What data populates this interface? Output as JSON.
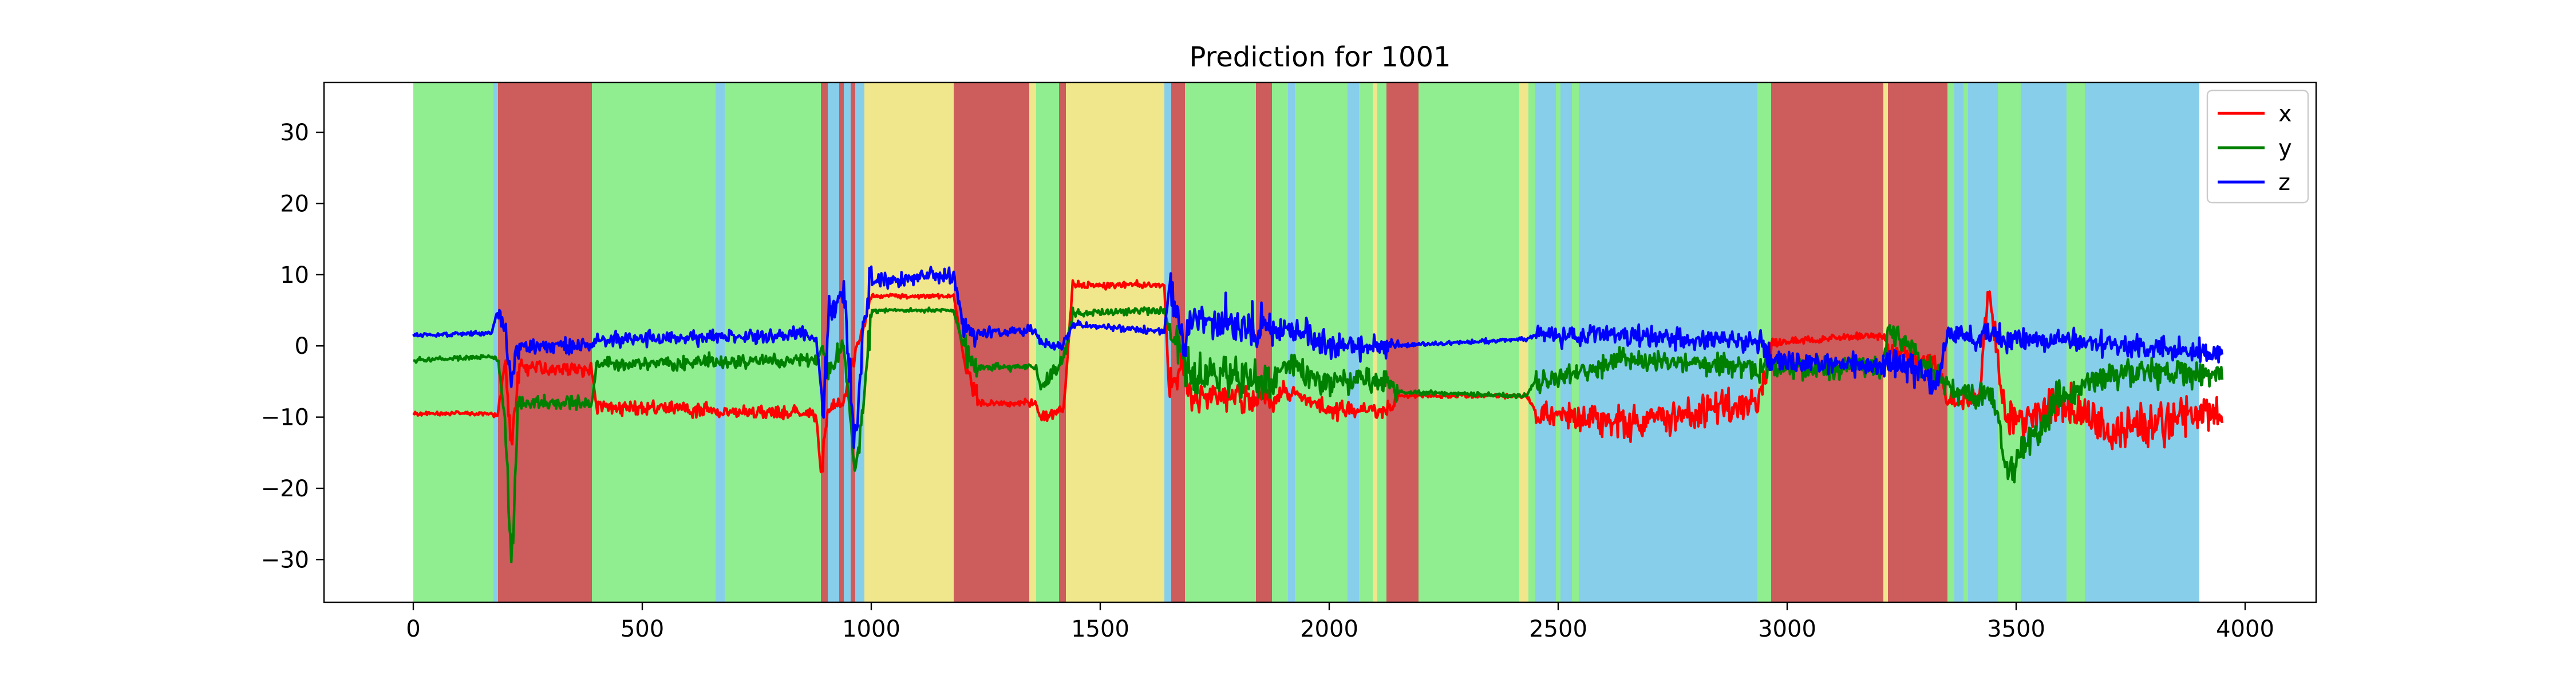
{
  "chart_data": {
    "type": "line",
    "title": "Prediction for 1001",
    "xlabel": "",
    "ylabel": "",
    "xlim": [
      -195,
      4155
    ],
    "ylim": [
      -36,
      37
    ],
    "xticks": [
      0,
      500,
      1000,
      1500,
      2000,
      2500,
      3000,
      3500,
      4000
    ],
    "yticks": [
      -30,
      -20,
      -10,
      0,
      10,
      20,
      30
    ],
    "grid": false,
    "legend_position": "top-right",
    "n_samples": 3950,
    "class_colors": {
      "green": "#90ee90",
      "red": "#cd5c5c",
      "blue": "#87ceeb",
      "yellow": "#f0e68c"
    },
    "background_segments": [
      {
        "start": 0,
        "end": 175,
        "class": "green"
      },
      {
        "start": 175,
        "end": 185,
        "class": "blue"
      },
      {
        "start": 185,
        "end": 390,
        "class": "red"
      },
      {
        "start": 390,
        "end": 660,
        "class": "green"
      },
      {
        "start": 660,
        "end": 680,
        "class": "blue"
      },
      {
        "start": 680,
        "end": 890,
        "class": "green"
      },
      {
        "start": 890,
        "end": 905,
        "class": "red"
      },
      {
        "start": 905,
        "end": 930,
        "class": "blue"
      },
      {
        "start": 930,
        "end": 940,
        "class": "red"
      },
      {
        "start": 940,
        "end": 955,
        "class": "blue"
      },
      {
        "start": 955,
        "end": 965,
        "class": "red"
      },
      {
        "start": 965,
        "end": 985,
        "class": "blue"
      },
      {
        "start": 985,
        "end": 1180,
        "class": "yellow"
      },
      {
        "start": 1180,
        "end": 1345,
        "class": "red"
      },
      {
        "start": 1345,
        "end": 1360,
        "class": "yellow"
      },
      {
        "start": 1360,
        "end": 1410,
        "class": "green"
      },
      {
        "start": 1410,
        "end": 1425,
        "class": "red"
      },
      {
        "start": 1425,
        "end": 1640,
        "class": "yellow"
      },
      {
        "start": 1640,
        "end": 1655,
        "class": "blue"
      },
      {
        "start": 1655,
        "end": 1685,
        "class": "red"
      },
      {
        "start": 1685,
        "end": 1840,
        "class": "green"
      },
      {
        "start": 1840,
        "end": 1875,
        "class": "red"
      },
      {
        "start": 1875,
        "end": 1910,
        "class": "green"
      },
      {
        "start": 1910,
        "end": 1925,
        "class": "blue"
      },
      {
        "start": 1925,
        "end": 2040,
        "class": "green"
      },
      {
        "start": 2040,
        "end": 2065,
        "class": "blue"
      },
      {
        "start": 2065,
        "end": 2095,
        "class": "green"
      },
      {
        "start": 2095,
        "end": 2105,
        "class": "yellow"
      },
      {
        "start": 2105,
        "end": 2125,
        "class": "green"
      },
      {
        "start": 2125,
        "end": 2195,
        "class": "red"
      },
      {
        "start": 2195,
        "end": 2415,
        "class": "green"
      },
      {
        "start": 2415,
        "end": 2435,
        "class": "yellow"
      },
      {
        "start": 2435,
        "end": 2450,
        "class": "green"
      },
      {
        "start": 2450,
        "end": 2495,
        "class": "blue"
      },
      {
        "start": 2495,
        "end": 2505,
        "class": "green"
      },
      {
        "start": 2505,
        "end": 2530,
        "class": "blue"
      },
      {
        "start": 2530,
        "end": 2545,
        "class": "green"
      },
      {
        "start": 2545,
        "end": 2935,
        "class": "blue"
      },
      {
        "start": 2935,
        "end": 2965,
        "class": "green"
      },
      {
        "start": 2965,
        "end": 3210,
        "class": "red"
      },
      {
        "start": 3210,
        "end": 3220,
        "class": "yellow"
      },
      {
        "start": 3220,
        "end": 3350,
        "class": "red"
      },
      {
        "start": 3350,
        "end": 3365,
        "class": "green"
      },
      {
        "start": 3365,
        "end": 3385,
        "class": "blue"
      },
      {
        "start": 3385,
        "end": 3395,
        "class": "green"
      },
      {
        "start": 3395,
        "end": 3460,
        "class": "blue"
      },
      {
        "start": 3460,
        "end": 3510,
        "class": "green"
      },
      {
        "start": 3510,
        "end": 3610,
        "class": "blue"
      },
      {
        "start": 3610,
        "end": 3650,
        "class": "green"
      },
      {
        "start": 3650,
        "end": 3900,
        "class": "blue"
      }
    ],
    "series": [
      {
        "name": "x",
        "color": "#ff0000",
        "anchors": [
          [
            0,
            -9.5
          ],
          [
            170,
            -9.5
          ],
          [
            185,
            -10
          ],
          [
            200,
            -2
          ],
          [
            215,
            -15
          ],
          [
            230,
            -3
          ],
          [
            390,
            -3.5
          ],
          [
            400,
            -8.5
          ],
          [
            880,
            -9.5
          ],
          [
            890,
            -18
          ],
          [
            905,
            -9
          ],
          [
            940,
            -8
          ],
          [
            960,
            -2
          ],
          [
            985,
            3
          ],
          [
            1000,
            7
          ],
          [
            1180,
            7
          ],
          [
            1200,
            -1
          ],
          [
            1230,
            -8
          ],
          [
            1360,
            -8
          ],
          [
            1370,
            -10
          ],
          [
            1420,
            -9
          ],
          [
            1440,
            8.5
          ],
          [
            1640,
            8.5
          ],
          [
            1650,
            -6
          ],
          [
            1685,
            -3
          ],
          [
            1700,
            -7
          ],
          [
            1880,
            -8
          ],
          [
            1900,
            -6
          ],
          [
            2000,
            -9
          ],
          [
            2130,
            -9
          ],
          [
            2150,
            -7
          ],
          [
            2430,
            -7
          ],
          [
            2450,
            -9
          ],
          [
            2650,
            -11
          ],
          [
            2935,
            -8
          ],
          [
            2965,
            0.5
          ],
          [
            3210,
            1.5
          ],
          [
            3220,
            0
          ],
          [
            3330,
            -3
          ],
          [
            3350,
            -8
          ],
          [
            3420,
            -7
          ],
          [
            3440,
            8
          ],
          [
            3460,
            -1
          ],
          [
            3480,
            -12
          ],
          [
            3600,
            -8
          ],
          [
            3700,
            -12
          ],
          [
            3960,
            -9
          ]
        ],
        "noise": [
          0.3,
          0.3,
          1.5,
          3,
          3,
          1,
          0.5,
          1,
          0.5,
          2,
          1,
          1,
          1,
          1,
          0.3,
          0.3,
          2,
          0.5,
          0.5,
          1,
          1,
          0.5,
          0.5,
          3,
          2,
          2,
          1,
          1,
          1.2,
          1.2,
          0.3,
          0.3,
          2,
          2.5,
          2.5,
          0.5,
          0.5,
          2,
          1,
          1.5,
          2,
          2,
          2,
          3,
          3,
          3,
          2
        ]
      },
      {
        "name": "y",
        "color": "#008000",
        "anchors": [
          [
            0,
            -2
          ],
          [
            170,
            -1.5
          ],
          [
            185,
            -2
          ],
          [
            200,
            -10
          ],
          [
            215,
            -30
          ],
          [
            230,
            -8
          ],
          [
            390,
            -8
          ],
          [
            400,
            -2.5
          ],
          [
            880,
            -2
          ],
          [
            895,
            0
          ],
          [
            905,
            -4
          ],
          [
            940,
            0
          ],
          [
            965,
            -18
          ],
          [
            985,
            -7
          ],
          [
            1000,
            5
          ],
          [
            1180,
            5
          ],
          [
            1200,
            0
          ],
          [
            1230,
            -3
          ],
          [
            1360,
            -3
          ],
          [
            1370,
            -6
          ],
          [
            1420,
            -2
          ],
          [
            1440,
            4.5
          ],
          [
            1640,
            5
          ],
          [
            1650,
            2
          ],
          [
            1685,
            -2
          ],
          [
            1700,
            -4
          ],
          [
            1880,
            -5
          ],
          [
            1900,
            -3
          ],
          [
            2000,
            -5
          ],
          [
            2130,
            -5
          ],
          [
            2150,
            -6.5
          ],
          [
            2430,
            -7
          ],
          [
            2450,
            -5
          ],
          [
            2650,
            -2
          ],
          [
            2935,
            -3
          ],
          [
            2965,
            -3
          ],
          [
            3210,
            -3
          ],
          [
            3220,
            2
          ],
          [
            3330,
            -4
          ],
          [
            3350,
            -6
          ],
          [
            3420,
            -7
          ],
          [
            3440,
            -7
          ],
          [
            3460,
            -10
          ],
          [
            3480,
            -18
          ],
          [
            3600,
            -7
          ],
          [
            3700,
            -4
          ],
          [
            3960,
            -4
          ]
        ],
        "noise": [
          0.3,
          0.3,
          1,
          3,
          3,
          1,
          0.5,
          1,
          0.5,
          2,
          2,
          1,
          2,
          3,
          0.3,
          0.3,
          2,
          0.5,
          0.5,
          1,
          1,
          0.5,
          0.5,
          3,
          3,
          3,
          2,
          2,
          2,
          1.5,
          0.3,
          0.3,
          1.5,
          1.5,
          2,
          1.5,
          1.5,
          2,
          1.5,
          1.5,
          2,
          2,
          2,
          2.5,
          2,
          2,
          2
        ]
      },
      {
        "name": "z",
        "color": "#0000ff",
        "anchors": [
          [
            0,
            1.5
          ],
          [
            170,
            1.8
          ],
          [
            185,
            5
          ],
          [
            200,
            2
          ],
          [
            215,
            -5
          ],
          [
            230,
            0
          ],
          [
            390,
            0
          ],
          [
            400,
            1
          ],
          [
            880,
            1.5
          ],
          [
            895,
            -10
          ],
          [
            905,
            5
          ],
          [
            940,
            7
          ],
          [
            965,
            -15
          ],
          [
            985,
            5
          ],
          [
            1000,
            9
          ],
          [
            1180,
            10
          ],
          [
            1200,
            3
          ],
          [
            1230,
            2
          ],
          [
            1360,
            2
          ],
          [
            1370,
            0.5
          ],
          [
            1420,
            0
          ],
          [
            1440,
            3
          ],
          [
            1640,
            2
          ],
          [
            1650,
            8
          ],
          [
            1685,
            0
          ],
          [
            1700,
            4
          ],
          [
            1880,
            2
          ],
          [
            1900,
            2.5
          ],
          [
            2000,
            0
          ],
          [
            2130,
            0
          ],
          [
            2150,
            0
          ],
          [
            2430,
            1
          ],
          [
            2450,
            1.5
          ],
          [
            2650,
            1.5
          ],
          [
            2935,
            0.5
          ],
          [
            2965,
            -2
          ],
          [
            3210,
            -3
          ],
          [
            3220,
            -2
          ],
          [
            3330,
            -5
          ],
          [
            3350,
            2
          ],
          [
            3420,
            1
          ],
          [
            3440,
            2
          ],
          [
            3460,
            1
          ],
          [
            3480,
            1
          ],
          [
            3600,
            1
          ],
          [
            3700,
            0
          ],
          [
            3960,
            -1
          ]
        ],
        "noise": [
          0.3,
          0.3,
          2,
          3,
          3,
          1,
          0.5,
          1,
          0.8,
          4,
          3,
          3,
          3,
          3,
          1,
          1,
          2,
          0.8,
          0.8,
          1,
          1,
          0.5,
          0.5,
          4,
          3,
          3,
          2,
          2,
          1.5,
          1,
          0.3,
          0.3,
          1.5,
          1.5,
          2,
          1.5,
          1.5,
          2,
          1.5,
          1.5,
          2,
          2,
          2,
          1.5,
          1.5,
          1.5,
          1.5
        ]
      }
    ]
  }
}
